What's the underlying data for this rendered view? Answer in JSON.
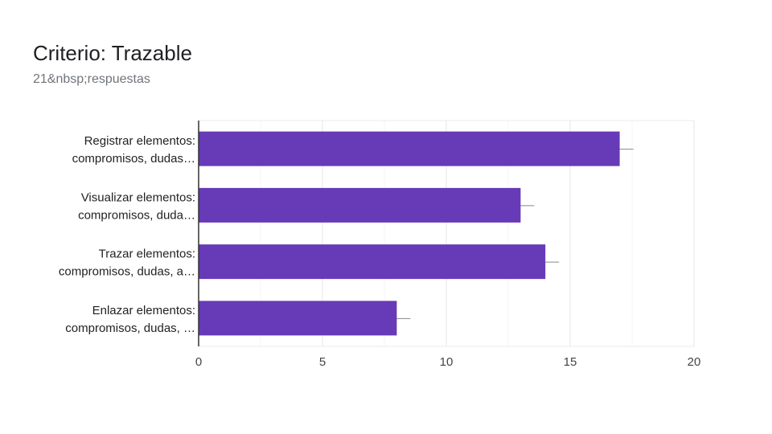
{
  "header": {
    "title": "Criterio: Trazable",
    "subtitle": "21&nbsp;respuestas"
  },
  "colors": {
    "bar": "#673ab7",
    "grid": "#ebebeb",
    "axis": "#333333",
    "error_bar": "#888888"
  },
  "chart_data": {
    "type": "bar",
    "orientation": "horizontal",
    "categories": [
      [
        "Registrar elementos:",
        "compromisos, dudas…"
      ],
      [
        "Visualizar elementos:",
        "compromisos, duda…"
      ],
      [
        "Trazar elementos:",
        "compromisos, dudas, a…"
      ],
      [
        "Enlazar elementos:",
        "compromisos, dudas, …"
      ]
    ],
    "values": [
      17,
      13,
      14,
      8
    ],
    "xlim": [
      0,
      20
    ],
    "xticks": [
      0,
      5,
      10,
      15,
      20
    ],
    "grid": true,
    "title": "",
    "xlabel": "",
    "ylabel": ""
  }
}
